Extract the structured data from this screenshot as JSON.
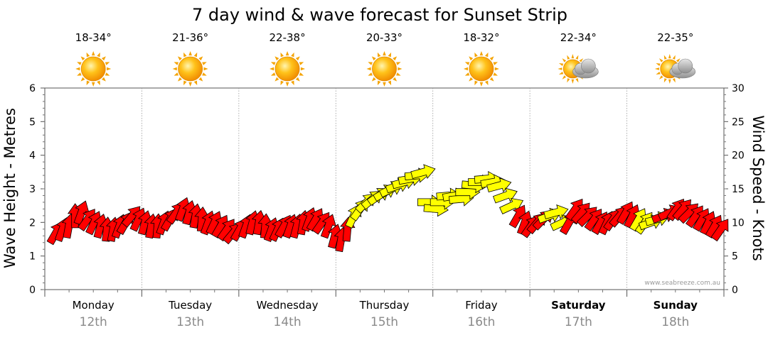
{
  "chart_data": {
    "type": "arrow-scatter",
    "title": "7 day wind & wave forecast for Sunset Strip",
    "ylabel_left": "Wave Height - Metres",
    "ylabel_right": "Wind Speed - Knots",
    "ylim_left": [
      0,
      6
    ],
    "ylim_right": [
      0,
      30
    ],
    "yticks_left": [
      "0",
      "1",
      "2",
      "3",
      "4",
      "5",
      "6"
    ],
    "yticks_right": [
      "0",
      "5",
      "10",
      "15",
      "20",
      "25",
      "30"
    ],
    "grid": true,
    "credit": "www.seabreeze.com.au",
    "colors": {
      "onshore": "#ff0000",
      "cross": "#ffff00",
      "stroke": "#000000"
    },
    "days": [
      {
        "day": "Monday",
        "date": "12th",
        "temp": "18-34°",
        "icon": "sun-icon",
        "bold": false
      },
      {
        "day": "Tuesday",
        "date": "13th",
        "temp": "21-36°",
        "icon": "sun-icon",
        "bold": false
      },
      {
        "day": "Wednesday",
        "date": "14th",
        "temp": "22-38°",
        "icon": "sun-icon",
        "bold": false
      },
      {
        "day": "Thursday",
        "date": "15th",
        "temp": "20-33°",
        "icon": "sun-icon",
        "bold": false
      },
      {
        "day": "Friday",
        "date": "16th",
        "temp": "18-32°",
        "icon": "sun-icon",
        "bold": false
      },
      {
        "day": "Saturday",
        "date": "17th",
        "temp": "22-34°",
        "icon": "sun-cloud-icon",
        "bold": true
      },
      {
        "day": "Sunday",
        "date": "18th",
        "temp": "22-35°",
        "icon": "sun-cloud-icon",
        "bold": true
      }
    ],
    "wind_knots": [
      8.5,
      9,
      9.5,
      11,
      11.5,
      10.5,
      10,
      9.5,
      9,
      9,
      9.5,
      10,
      11,
      10.5,
      10,
      9.5,
      9.5,
      10,
      10.5,
      11.5,
      12,
      11.5,
      11,
      10.5,
      10,
      10,
      9.5,
      9,
      8.5,
      9,
      9.5,
      10,
      10,
      9.5,
      9,
      9,
      9.5,
      9.5,
      9.5,
      10,
      10.5,
      10.5,
      10,
      9.5,
      8,
      7.5,
      9,
      11,
      12,
      13,
      13.5,
      14,
      14.5,
      15,
      15.5,
      16,
      16.5,
      17,
      17.5,
      13,
      12,
      13,
      14,
      14,
      13.5,
      14.5,
      15.5,
      16,
      16.5,
      16,
      15.5,
      14,
      12.5,
      11,
      10,
      9.5,
      10,
      10.5,
      11,
      11.5,
      10,
      10,
      12,
      11.5,
      11,
      10.5,
      10,
      10,
      10.5,
      11,
      11.5,
      11,
      10.5,
      10,
      10,
      10.5,
      11,
      11.5,
      12,
      12,
      11.5,
      11,
      10.5,
      10,
      9.5,
      9
    ],
    "wind_color": [
      "r",
      "r",
      "r",
      "r",
      "r",
      "r",
      "r",
      "r",
      "r",
      "r",
      "r",
      "r",
      "r",
      "r",
      "r",
      "r",
      "r",
      "r",
      "r",
      "r",
      "r",
      "r",
      "r",
      "r",
      "r",
      "r",
      "r",
      "r",
      "r",
      "r",
      "r",
      "r",
      "r",
      "r",
      "r",
      "r",
      "r",
      "r",
      "r",
      "r",
      "r",
      "r",
      "r",
      "r",
      "r",
      "r",
      "r",
      "y",
      "y",
      "y",
      "y",
      "y",
      "y",
      "y",
      "y",
      "y",
      "y",
      "y",
      "y",
      "y",
      "y",
      "y",
      "y",
      "y",
      "y",
      "y",
      "y",
      "y",
      "y",
      "y",
      "y",
      "y",
      "y",
      "r",
      "r",
      "r",
      "r",
      "r",
      "y",
      "y",
      "y",
      "r",
      "r",
      "r",
      "r",
      "r",
      "r",
      "r",
      "r",
      "r",
      "r",
      "r",
      "y",
      "y",
      "y",
      "y",
      "r",
      "r",
      "r",
      "r",
      "r",
      "r",
      "r",
      "r"
    ],
    "wind_direction_deg": [
      210,
      200,
      190,
      180,
      200,
      215,
      205,
      195,
      185,
      190,
      200,
      210,
      220,
      205,
      195,
      190,
      185,
      200,
      210,
      215,
      200,
      195,
      190,
      185,
      200,
      205,
      210,
      215,
      220,
      210,
      200,
      195,
      190,
      185,
      200,
      205,
      210,
      200,
      195,
      190,
      200,
      210,
      215,
      200,
      195,
      190,
      185,
      205,
      215,
      225,
      230,
      235,
      240,
      245,
      250,
      255,
      260,
      265,
      255,
      270,
      275,
      270,
      265,
      260,
      265,
      270,
      275,
      270,
      265,
      260,
      255,
      250,
      245,
      210,
      200,
      215,
      220,
      225,
      250,
      255,
      245,
      210,
      215,
      220,
      225,
      215,
      210,
      205,
      215,
      220,
      210,
      205,
      210,
      215,
      250,
      255,
      250,
      245,
      215,
      220,
      225,
      215,
      210,
      205,
      210,
      215
    ]
  }
}
